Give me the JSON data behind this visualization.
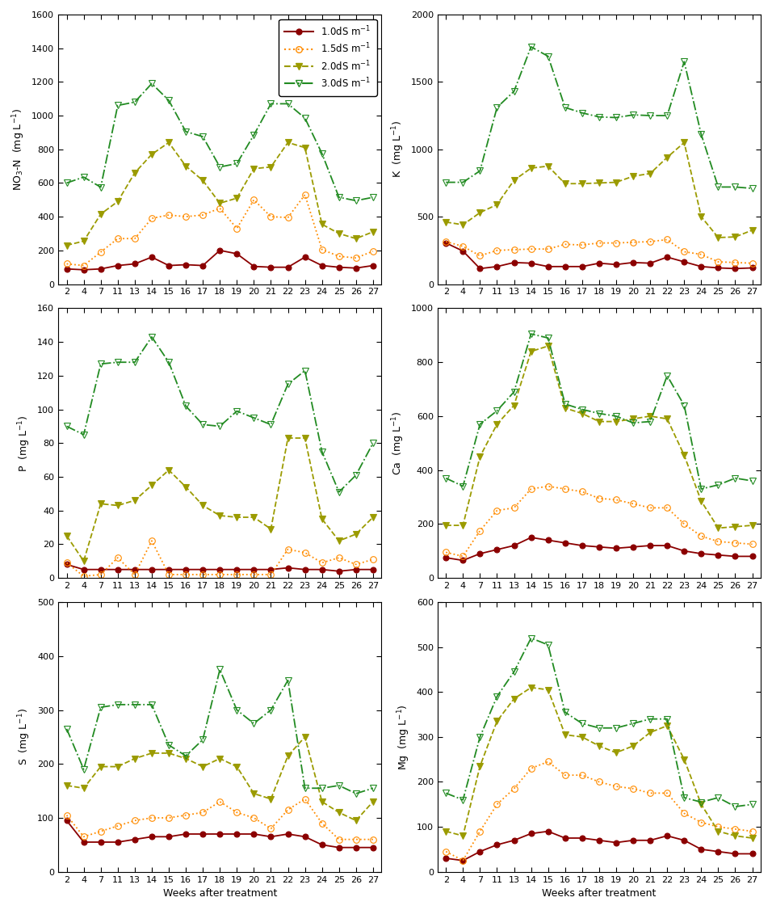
{
  "x_labels": [
    "2",
    "4",
    "7",
    "11",
    "13",
    "14",
    "15",
    "16",
    "17",
    "18",
    "19",
    "20",
    "21",
    "22",
    "23",
    "24",
    "25",
    "26",
    "27"
  ],
  "NO3N": {
    "ec1": [
      90,
      85,
      90,
      110,
      120,
      160,
      110,
      115,
      110,
      200,
      180,
      105,
      100,
      100,
      160,
      110,
      100,
      95,
      110
    ],
    "ec15": [
      120,
      110,
      190,
      270,
      270,
      390,
      410,
      400,
      410,
      450,
      330,
      500,
      400,
      395,
      530,
      205,
      165,
      155,
      195
    ],
    "ec2": [
      230,
      255,
      415,
      490,
      660,
      770,
      840,
      700,
      615,
      480,
      510,
      685,
      695,
      840,
      810,
      355,
      300,
      270,
      310
    ],
    "ec3": [
      600,
      635,
      575,
      1060,
      1080,
      1190,
      1090,
      905,
      875,
      695,
      715,
      885,
      1070,
      1070,
      985,
      775,
      515,
      495,
      515
    ]
  },
  "K": {
    "ec1": [
      305,
      245,
      115,
      130,
      160,
      155,
      130,
      130,
      130,
      155,
      145,
      160,
      155,
      200,
      165,
      130,
      120,
      115,
      120
    ],
    "ec15": [
      315,
      280,
      210,
      250,
      255,
      260,
      260,
      295,
      290,
      305,
      305,
      310,
      315,
      330,
      240,
      220,
      165,
      160,
      155
    ],
    "ec2": [
      460,
      440,
      530,
      590,
      770,
      860,
      875,
      745,
      745,
      750,
      755,
      800,
      820,
      940,
      1050,
      500,
      345,
      350,
      400
    ],
    "ec3": [
      755,
      755,
      840,
      1310,
      1430,
      1760,
      1690,
      1310,
      1270,
      1240,
      1235,
      1255,
      1250,
      1250,
      1650,
      1110,
      720,
      720,
      710
    ]
  },
  "P": {
    "ec1": [
      8,
      5,
      5,
      5,
      5,
      5,
      5,
      5,
      5,
      5,
      5,
      5,
      5,
      6,
      5,
      5,
      4,
      5,
      5
    ],
    "ec15": [
      9,
      1,
      2,
      12,
      2,
      22,
      2,
      2,
      2,
      2,
      2,
      2,
      2,
      17,
      15,
      9,
      12,
      8,
      11
    ],
    "ec2": [
      25,
      10,
      44,
      43,
      46,
      55,
      64,
      54,
      43,
      37,
      36,
      36,
      29,
      83,
      83,
      35,
      22,
      26,
      36
    ],
    "ec3": [
      90,
      85,
      127,
      128,
      128,
      143,
      128,
      102,
      91,
      90,
      99,
      95,
      91,
      115,
      123,
      75,
      51,
      61,
      80
    ]
  },
  "Ca": {
    "ec1": [
      75,
      65,
      90,
      105,
      120,
      150,
      140,
      130,
      120,
      115,
      110,
      115,
      120,
      120,
      100,
      90,
      85,
      80,
      80
    ],
    "ec15": [
      95,
      80,
      175,
      250,
      260,
      330,
      340,
      330,
      320,
      295,
      290,
      275,
      260,
      260,
      200,
      155,
      135,
      130,
      125
    ],
    "ec2": [
      195,
      195,
      450,
      570,
      640,
      840,
      860,
      630,
      610,
      580,
      580,
      590,
      600,
      590,
      455,
      285,
      185,
      190,
      195
    ],
    "ec3": [
      370,
      340,
      570,
      620,
      690,
      905,
      890,
      645,
      625,
      610,
      600,
      575,
      580,
      750,
      640,
      330,
      345,
      370,
      360
    ]
  },
  "S": {
    "ec1": [
      95,
      55,
      55,
      55,
      60,
      65,
      65,
      70,
      70,
      70,
      70,
      70,
      65,
      70,
      65,
      50,
      45,
      45,
      45
    ],
    "ec15": [
      105,
      65,
      75,
      85,
      95,
      100,
      100,
      105,
      110,
      130,
      110,
      100,
      80,
      115,
      135,
      90,
      60,
      60,
      60
    ],
    "ec2": [
      160,
      155,
      195,
      195,
      210,
      220,
      220,
      210,
      195,
      210,
      195,
      145,
      135,
      215,
      250,
      130,
      110,
      95,
      130
    ],
    "ec3": [
      265,
      190,
      305,
      310,
      310,
      310,
      235,
      215,
      245,
      375,
      300,
      275,
      300,
      355,
      155,
      155,
      160,
      145,
      155
    ]
  },
  "Mg": {
    "ec1": [
      30,
      25,
      45,
      60,
      70,
      85,
      90,
      75,
      75,
      70,
      65,
      70,
      70,
      80,
      70,
      50,
      45,
      40,
      40
    ],
    "ec15": [
      45,
      25,
      90,
      150,
      185,
      230,
      245,
      215,
      215,
      200,
      190,
      185,
      175,
      175,
      130,
      110,
      100,
      95,
      90
    ],
    "ec2": [
      90,
      80,
      235,
      335,
      385,
      410,
      405,
      305,
      300,
      280,
      265,
      280,
      310,
      325,
      250,
      150,
      90,
      80,
      75
    ],
    "ec3": [
      175,
      160,
      300,
      390,
      445,
      520,
      505,
      355,
      330,
      320,
      320,
      330,
      340,
      340,
      165,
      155,
      165,
      145,
      150
    ]
  },
  "colors": {
    "ec1": "#8B0000",
    "ec15": "#FF8C00",
    "ec2": "#9B9B00",
    "ec3": "#228B22"
  },
  "ylims": {
    "NO3N": [
      0,
      1600
    ],
    "K": [
      0,
      2000
    ],
    "P": [
      0,
      160
    ],
    "Ca": [
      0,
      1000
    ],
    "S": [
      0,
      500
    ],
    "Mg": [
      0,
      600
    ]
  },
  "yticks": {
    "NO3N": [
      0,
      200,
      400,
      600,
      800,
      1000,
      1200,
      1400,
      1600
    ],
    "K": [
      0,
      500,
      1000,
      1500,
      2000
    ],
    "P": [
      0,
      20,
      40,
      60,
      80,
      100,
      120,
      140,
      160
    ],
    "Ca": [
      0,
      200,
      400,
      600,
      800,
      1000
    ],
    "S": [
      0,
      100,
      200,
      300,
      400,
      500
    ],
    "Mg": [
      0,
      100,
      200,
      300,
      400,
      500,
      600
    ]
  },
  "ylabels": {
    "NO3N": "NO$_3$-N  (mg L$^{-1}$)",
    "K": "K  (mg L$^{-1}$)",
    "P": "P  (mg L$^{-1}$)",
    "Ca": "Ca  (mg L$^{-1}$)",
    "S": "S  (mg L$^{-1}$)",
    "Mg": "Mg  (mg L$^{-1}$)"
  },
  "legend_labels": [
    "1.0dS m$^{-1}$",
    "1.5dS m$^{-1}$",
    "2.0dS m$^{-1}$",
    "3.0dS m$^{-1}$"
  ],
  "xlabel": "Weeks after treatment"
}
